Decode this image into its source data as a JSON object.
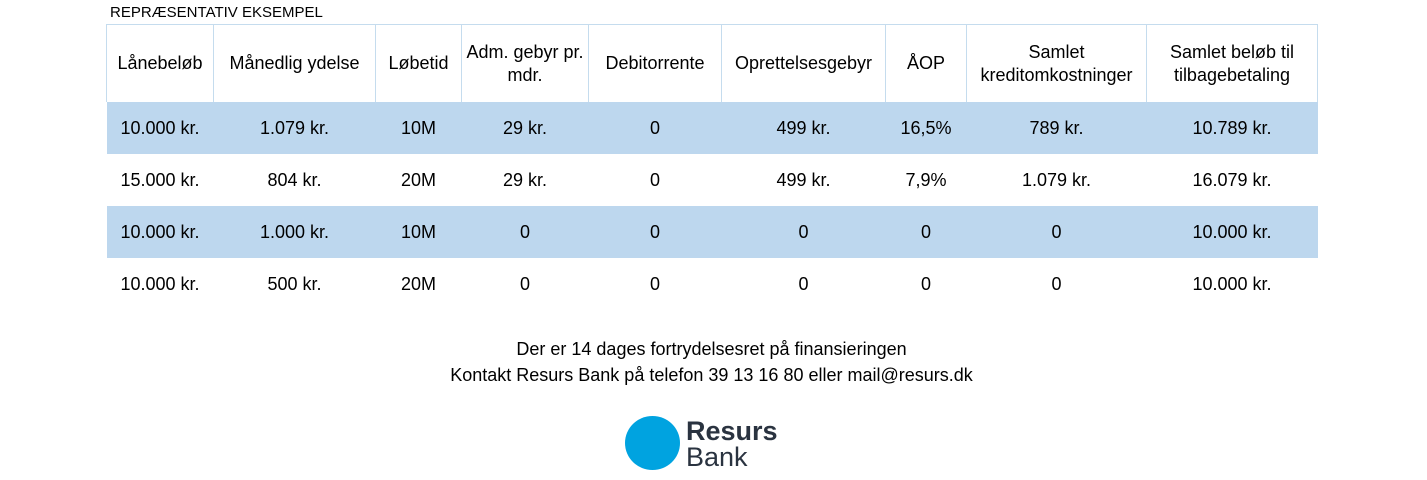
{
  "caption": "REPRÆSENTATIV EKSEMPEL",
  "table": {
    "header": [
      "Lånebeløb",
      "Månedlig ydelse",
      "Løbetid",
      "Adm. gebyr pr. mdr.",
      "Debitorrente",
      "Oprettelsesgebyr",
      "ÅOP",
      "Samlet kreditomkostninger",
      "Samlet beløb til tilbagebetaling"
    ],
    "rows": [
      [
        "10.000 kr.",
        "1.079 kr.",
        "10M",
        "29 kr.",
        "0",
        "499 kr.",
        "16,5%",
        "789 kr.",
        "10.789 kr."
      ],
      [
        "15.000 kr.",
        "804 kr.",
        "20M",
        "29 kr.",
        "0",
        "499 kr.",
        "7,9%",
        "1.079 kr.",
        "16.079 kr."
      ],
      [
        "10.000 kr.",
        "1.000 kr.",
        "10M",
        "0",
        "0",
        "0",
        "0",
        "0",
        "10.000 kr."
      ],
      [
        "10.000 kr.",
        "500 kr.",
        "20M",
        "0",
        "0",
        "0",
        "0",
        "0",
        "10.000 kr."
      ]
    ]
  },
  "footer": [
    "Der er 14 dages fortrydelsesret på finansieringen",
    "Kontakt Resurs Bank på telefon 39 13 16 80 eller mail@resurs.dk"
  ],
  "logo": [
    "Resurs",
    "Bank"
  ]
}
